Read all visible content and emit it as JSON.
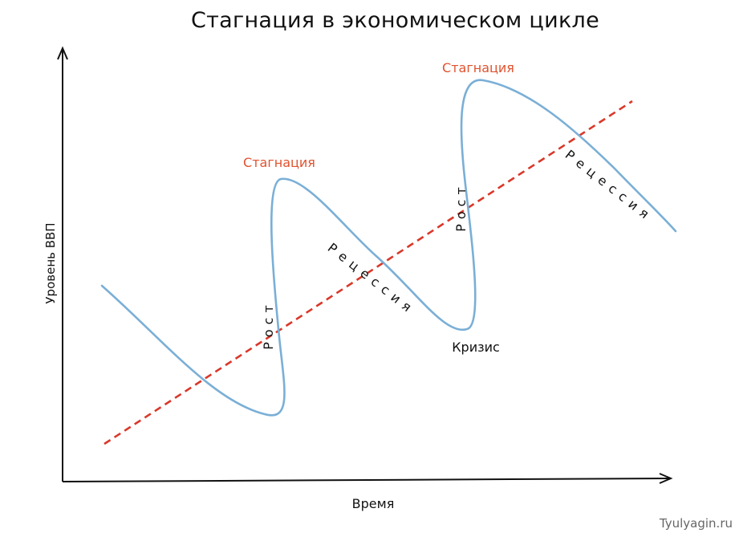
{
  "title": "Стагнация в экономическом цикле",
  "axes": {
    "y_label": "Уровень ВВП",
    "x_label": "Время"
  },
  "labels": {
    "stagnation_1": "Стагнация",
    "stagnation_2": "Стагнация",
    "growth_1": "Рост",
    "growth_2": "Рост",
    "recession_1": "Рецессия",
    "recession_2": "Рецессия",
    "crisis": "Кризис"
  },
  "credit": "Tyulyagin.ru",
  "colors": {
    "cycle_curve": "#7aafd6",
    "trend_line": "#d9382a",
    "stagnation_label": "#e0532f",
    "axes": "#111111"
  }
}
